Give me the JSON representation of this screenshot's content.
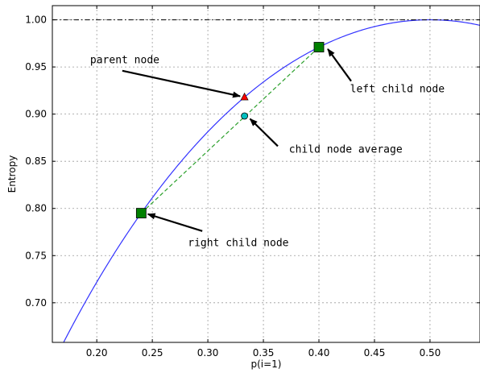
{
  "chart_data": {
    "type": "line",
    "title": "",
    "xlabel": "p(i=1)",
    "ylabel": "Entropy",
    "xlim": [
      0.16,
      0.545
    ],
    "ylim": [
      0.658,
      1.015
    ],
    "grid": true,
    "x_ticks": [
      0.2,
      0.25,
      0.3,
      0.35,
      0.4,
      0.45,
      0.5
    ],
    "y_ticks": [
      0.7,
      0.75,
      0.8,
      0.85,
      0.9,
      0.95,
      1.0
    ],
    "x_tick_labels": [
      "0.20",
      "0.25",
      "0.30",
      "0.35",
      "0.40",
      "0.45",
      "0.50"
    ],
    "y_tick_labels": [
      "0.70",
      "0.75",
      "0.80",
      "0.85",
      "0.90",
      "0.95",
      "1.00"
    ],
    "series": [
      {
        "kind": "curve",
        "function": "binary_entropy",
        "color": "#3333ff",
        "x": [
          0.16,
          0.18,
          0.2,
          0.22,
          0.24,
          0.26,
          0.28,
          0.3,
          0.32,
          0.34,
          0.36,
          0.38,
          0.4,
          0.42,
          0.44,
          0.46,
          0.48,
          0.5,
          0.52,
          0.545
        ],
        "y": [
          0.634,
          0.68,
          0.722,
          0.76,
          0.795,
          0.827,
          0.855,
          0.881,
          0.904,
          0.925,
          0.943,
          0.958,
          0.971,
          0.982,
          0.99,
          0.995,
          0.999,
          1.0,
          0.999,
          0.994
        ]
      },
      {
        "kind": "hline",
        "color": "#000000",
        "y": 1.0
      },
      {
        "kind": "segment",
        "color": "#2ca02c",
        "x": [
          0.24,
          0.4
        ],
        "y": [
          0.795,
          0.971
        ]
      }
    ],
    "points": [
      {
        "role": "right-child",
        "marker": "square",
        "color": "#008000",
        "x": 0.24,
        "y": 0.795
      },
      {
        "role": "left-child",
        "marker": "square",
        "color": "#008000",
        "x": 0.4,
        "y": 0.971
      },
      {
        "role": "parent",
        "marker": "triangle",
        "color": "#ff0000",
        "x": 0.333,
        "y": 0.918
      },
      {
        "role": "average",
        "marker": "circle",
        "color": "#00bfbf",
        "x": 0.333,
        "y": 0.898
      }
    ],
    "annotations": [
      {
        "text": "parent node",
        "x": 0.194,
        "y": 0.954,
        "tx": 0.223,
        "ty": 0.946,
        "hx": 0.329,
        "hy": 0.919
      },
      {
        "text": "left child node",
        "x": 0.428,
        "y": 0.923,
        "tx": 0.429,
        "ty": 0.935,
        "hx": 0.408,
        "hy": 0.969
      },
      {
        "text": "child node average",
        "x": 0.373,
        "y": 0.859,
        "tx": 0.363,
        "ty": 0.866,
        "hx": 0.338,
        "hy": 0.895
      },
      {
        "text": "right child node",
        "x": 0.282,
        "y": 0.76,
        "tx": 0.295,
        "ty": 0.776,
        "hx": 0.246,
        "hy": 0.794
      }
    ]
  }
}
